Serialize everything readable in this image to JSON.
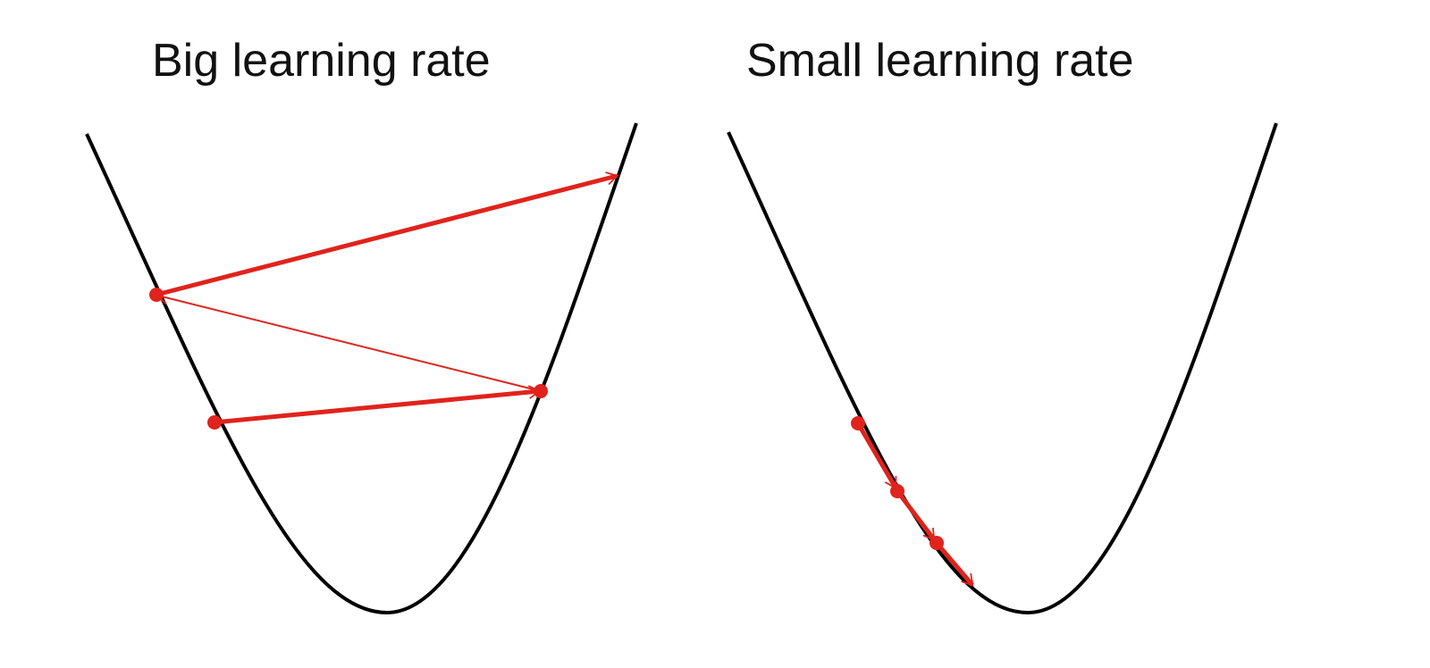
{
  "panels": [
    {
      "title": "Big learning rate"
    },
    {
      "title": "Small learning rate"
    }
  ],
  "colors": {
    "curve": "#000000",
    "step": "#e0231c"
  }
}
